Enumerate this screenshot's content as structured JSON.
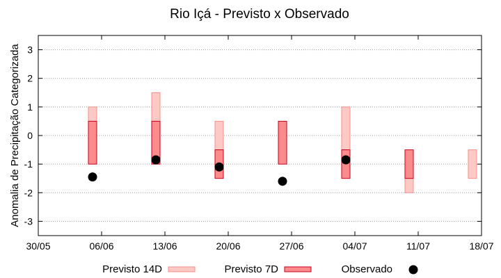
{
  "chart_data": {
    "type": "floating-bar",
    "title": "Rio Içá - Previsto x Observado",
    "ylabel": "Anomalia de Precipitação Categorizada",
    "xlabel": "",
    "ylim": [
      -3.5,
      3.5
    ],
    "yticks": [
      3,
      2,
      1,
      0,
      -1,
      -2,
      -3
    ],
    "ytick_labels": [
      "3",
      "2",
      "1",
      "0",
      "-1",
      "-2",
      "-3"
    ],
    "xlim": [
      "2021-05-30",
      "2021-07-18"
    ],
    "xticks": [
      "2021-05-30",
      "2021-06-06",
      "2021-06-13",
      "2021-06-20",
      "2021-06-27",
      "2021-07-04",
      "2021-07-11",
      "2021-07-18"
    ],
    "xtick_labels": [
      "30/05",
      "06/06",
      "13/06",
      "20/06",
      "27/06",
      "04/07",
      "11/07",
      "18/07"
    ],
    "grid": true,
    "legend_position": "bottom",
    "series": [
      {
        "name": "Previsto 14D",
        "kind": "range",
        "color": "#fdc9c4",
        "edge_color": "#f5908a",
        "points": [
          {
            "x": "2021-06-05",
            "low": 0.5,
            "high": 1.0
          },
          {
            "x": "2021-06-12",
            "low": 0.5,
            "high": 1.5
          },
          {
            "x": "2021-06-19",
            "low": -0.5,
            "high": 0.5
          },
          {
            "x": "2021-07-03",
            "low": -0.5,
            "high": 1.0
          },
          {
            "x": "2021-07-10",
            "low": -2.0,
            "high": -1.5
          },
          {
            "x": "2021-07-17",
            "low": -1.5,
            "high": -0.5
          }
        ]
      },
      {
        "name": "Previsto 7D",
        "kind": "range",
        "color": "#fc8b8b",
        "edge_color": "#c8001e",
        "points": [
          {
            "x": "2021-06-05",
            "low": -1.0,
            "high": 0.5
          },
          {
            "x": "2021-06-12",
            "low": -1.0,
            "high": 0.5
          },
          {
            "x": "2021-06-19",
            "low": -1.5,
            "high": -0.5
          },
          {
            "x": "2021-06-26",
            "low": -1.0,
            "high": 0.5
          },
          {
            "x": "2021-07-03",
            "low": -1.5,
            "high": -0.5
          },
          {
            "x": "2021-07-10",
            "low": -1.5,
            "high": -0.5
          }
        ]
      },
      {
        "name": "Observado",
        "kind": "scatter",
        "color": "#000000",
        "points": [
          {
            "x": "2021-06-05",
            "y": -1.45
          },
          {
            "x": "2021-06-12",
            "y": -0.85
          },
          {
            "x": "2021-06-19",
            "y": -1.1
          },
          {
            "x": "2021-06-26",
            "y": -1.6
          },
          {
            "x": "2021-07-03",
            "y": -0.85
          }
        ]
      }
    ]
  }
}
